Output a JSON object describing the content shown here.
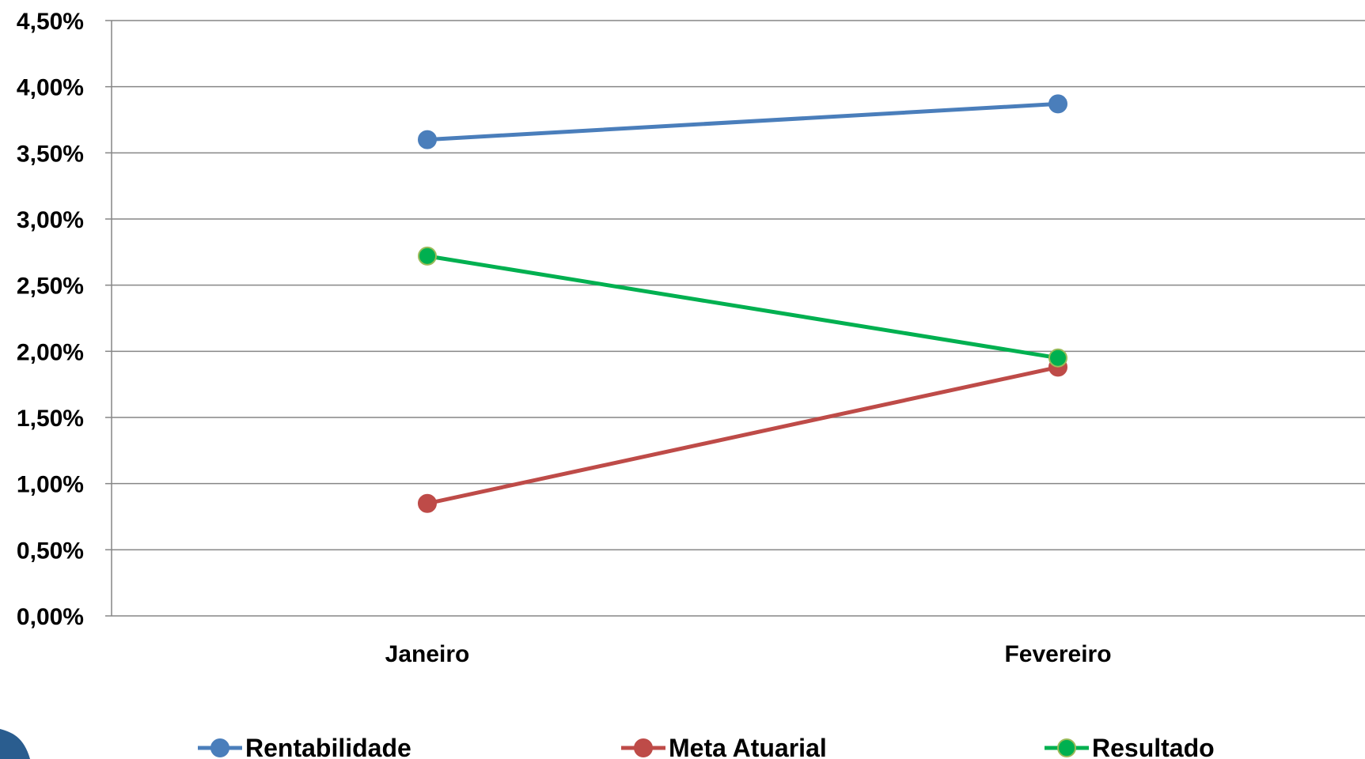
{
  "chart_data": {
    "type": "line",
    "title": "",
    "xlabel": "",
    "ylabel": "",
    "categories": [
      "Janeiro",
      "Fevereiro"
    ],
    "ylim": [
      0,
      4.5
    ],
    "y_ticks": [
      "0,00%",
      "0,50%",
      "1,00%",
      "1,50%",
      "2,00%",
      "2,50%",
      "3,00%",
      "3,50%",
      "4,00%",
      "4,50%"
    ],
    "y_unit": "%",
    "grid": true,
    "legend_position": "bottom",
    "series": [
      {
        "name": "Rentabilidade",
        "values": [
          3.6,
          3.87
        ],
        "color": "#4a7ebb"
      },
      {
        "name": "Meta Atuarial",
        "values": [
          0.85,
          1.88
        ],
        "color": "#be4b48"
      },
      {
        "name": "Resultado",
        "values": [
          2.72,
          1.95
        ],
        "color": "#00b050"
      }
    ]
  }
}
